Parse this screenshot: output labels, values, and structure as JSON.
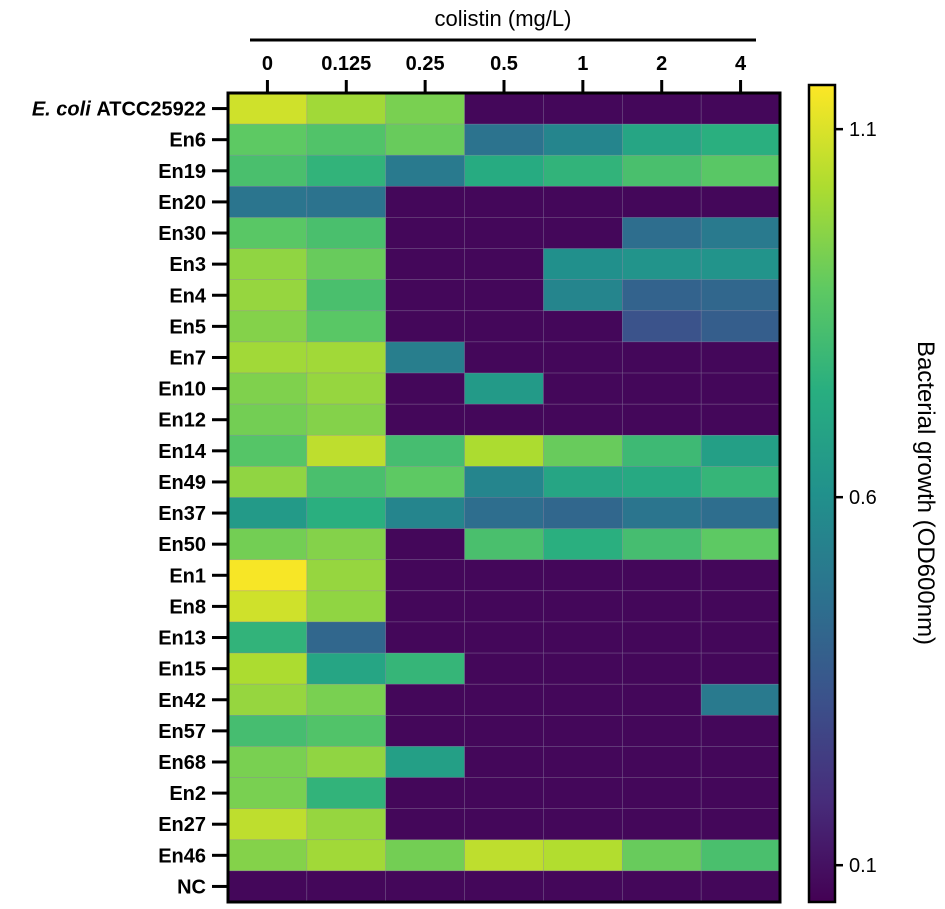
{
  "chart_data": {
    "type": "heatmap",
    "title": "colistin (mg/L)",
    "columns": [
      "0",
      "0.125",
      "0.25",
      "0.5",
      "1",
      "2",
      "4"
    ],
    "rows": [
      {
        "italic": "E. coli",
        "label": "ATCC25922",
        "values": [
          1.08,
          1.0,
          0.93,
          0.07,
          0.07,
          0.07,
          0.07
        ]
      },
      {
        "italic": "",
        "label": "En6",
        "values": [
          0.88,
          0.85,
          0.9,
          0.47,
          0.55,
          0.7,
          0.75
        ]
      },
      {
        "italic": "",
        "label": "En19",
        "values": [
          0.83,
          0.77,
          0.5,
          0.73,
          0.77,
          0.83,
          0.87
        ]
      },
      {
        "italic": "",
        "label": "En20",
        "values": [
          0.48,
          0.47,
          0.07,
          0.07,
          0.07,
          0.07,
          0.07
        ]
      },
      {
        "italic": "",
        "label": "En30",
        "values": [
          0.87,
          0.83,
          0.07,
          0.07,
          0.07,
          0.45,
          0.5
        ]
      },
      {
        "italic": "",
        "label": "En3",
        "values": [
          0.97,
          0.9,
          0.07,
          0.07,
          0.6,
          0.62,
          0.62
        ]
      },
      {
        "italic": "",
        "label": "En4",
        "values": [
          0.98,
          0.83,
          0.07,
          0.07,
          0.55,
          0.4,
          0.42
        ]
      },
      {
        "italic": "",
        "label": "En5",
        "values": [
          0.95,
          0.87,
          0.07,
          0.07,
          0.07,
          0.33,
          0.38
        ]
      },
      {
        "italic": "",
        "label": "En7",
        "values": [
          1.0,
          1.0,
          0.52,
          0.07,
          0.07,
          0.07,
          0.07
        ]
      },
      {
        "italic": "",
        "label": "En10",
        "values": [
          0.94,
          0.98,
          0.07,
          0.65,
          0.07,
          0.07,
          0.07
        ]
      },
      {
        "italic": "",
        "label": "En12",
        "values": [
          0.92,
          0.95,
          0.07,
          0.07,
          0.07,
          0.07,
          0.07
        ]
      },
      {
        "italic": "",
        "label": "En14",
        "values": [
          0.86,
          1.05,
          0.82,
          1.02,
          0.9,
          0.8,
          0.67
        ]
      },
      {
        "italic": "",
        "label": "En49",
        "values": [
          0.97,
          0.83,
          0.88,
          0.55,
          0.7,
          0.72,
          0.78
        ]
      },
      {
        "italic": "",
        "label": "En37",
        "values": [
          0.65,
          0.75,
          0.55,
          0.45,
          0.42,
          0.48,
          0.45
        ]
      },
      {
        "italic": "",
        "label": "En50",
        "values": [
          0.92,
          0.95,
          0.07,
          0.83,
          0.75,
          0.82,
          0.88
        ]
      },
      {
        "italic": "",
        "label": "En1",
        "values": [
          1.15,
          0.98,
          0.07,
          0.07,
          0.07,
          0.07,
          0.07
        ]
      },
      {
        "italic": "",
        "label": "En8",
        "values": [
          1.08,
          0.97,
          0.07,
          0.07,
          0.07,
          0.07,
          0.07
        ]
      },
      {
        "italic": "",
        "label": "En13",
        "values": [
          0.77,
          0.42,
          0.07,
          0.07,
          0.07,
          0.07,
          0.07
        ]
      },
      {
        "italic": "",
        "label": "En15",
        "values": [
          1.02,
          0.7,
          0.78,
          0.07,
          0.07,
          0.07,
          0.07
        ]
      },
      {
        "italic": "",
        "label": "En42",
        "values": [
          0.98,
          0.93,
          0.07,
          0.07,
          0.07,
          0.07,
          0.5
        ]
      },
      {
        "italic": "",
        "label": "En57",
        "values": [
          0.82,
          0.85,
          0.07,
          0.07,
          0.07,
          0.07,
          0.07
        ]
      },
      {
        "italic": "",
        "label": "En68",
        "values": [
          0.93,
          0.97,
          0.67,
          0.07,
          0.07,
          0.07,
          0.07
        ]
      },
      {
        "italic": "",
        "label": "En2",
        "values": [
          0.93,
          0.77,
          0.07,
          0.07,
          0.07,
          0.07,
          0.07
        ]
      },
      {
        "italic": "",
        "label": "En27",
        "values": [
          1.05,
          0.98,
          0.07,
          0.07,
          0.07,
          0.07,
          0.07
        ]
      },
      {
        "italic": "",
        "label": "En46",
        "values": [
          0.95,
          1.0,
          0.92,
          1.05,
          1.03,
          0.9,
          0.83
        ]
      },
      {
        "italic": "",
        "label": "NC",
        "values": [
          0.07,
          0.07,
          0.07,
          0.07,
          0.07,
          0.07,
          0.07
        ]
      }
    ],
    "colorbar": {
      "label": "Bacterial growth (OD600nm)",
      "min": 0.05,
      "max": 1.16,
      "ticks": [
        0.1,
        0.6,
        1.1
      ],
      "tick_labels": [
        "0.1",
        "0.6",
        "1.1"
      ],
      "colormap": "viridis"
    },
    "colormap_stops": [
      "#440154",
      "#472d7b",
      "#3b528b",
      "#2c728e",
      "#21918c",
      "#28ae80",
      "#5ec962",
      "#addc30",
      "#fde725"
    ]
  }
}
